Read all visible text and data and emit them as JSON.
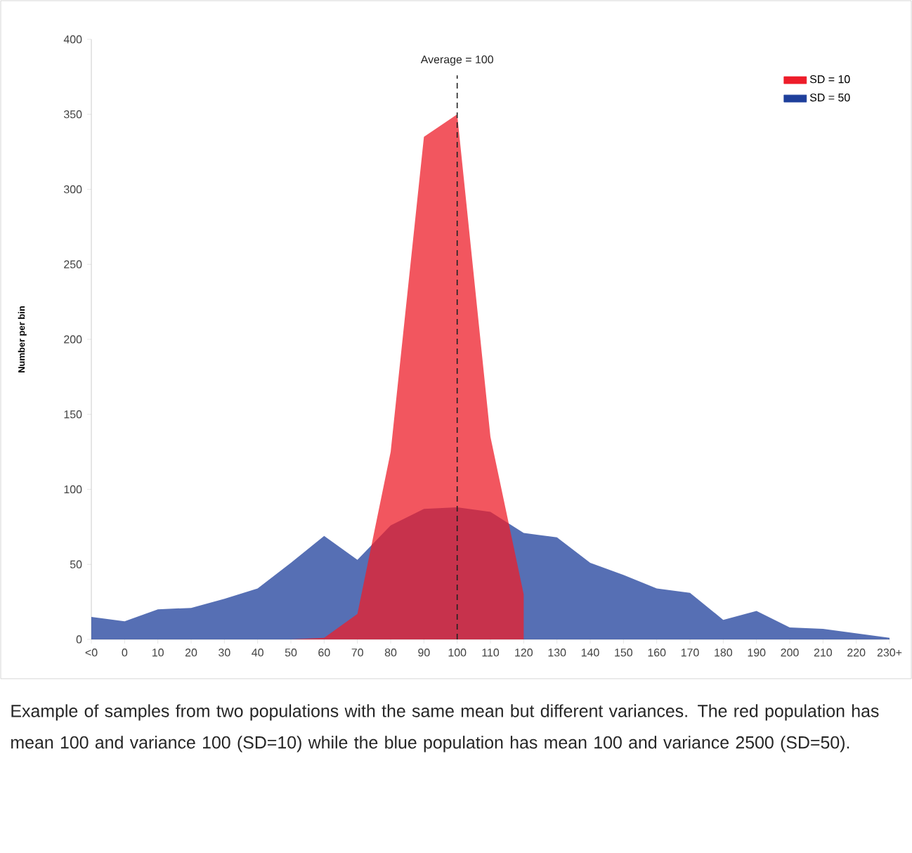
{
  "chart_data": {
    "type": "area",
    "ylabel": "Number per bin",
    "categories": [
      "<0",
      "0",
      "10",
      "20",
      "30",
      "40",
      "50",
      "60",
      "70",
      "80",
      "90",
      "100",
      "110",
      "120",
      "130",
      "140",
      "150",
      "160",
      "170",
      "180",
      "190",
      "200",
      "210",
      "220",
      "230+"
    ],
    "series": [
      {
        "name": "SD = 50",
        "color": "#1e3f9b",
        "values": [
          15,
          12,
          20,
          21,
          27,
          34,
          51,
          69,
          53,
          76,
          87,
          88,
          85,
          71,
          68,
          51,
          43,
          34,
          31,
          13,
          19,
          8,
          7,
          4,
          1
        ]
      },
      {
        "name": "SD = 10",
        "color": "#ee1d2a",
        "values": [
          null,
          null,
          null,
          null,
          null,
          null,
          0,
          1,
          17,
          125,
          335,
          350,
          135,
          30,
          null,
          null,
          null,
          null,
          null,
          null,
          null,
          null,
          null,
          null,
          null
        ]
      }
    ],
    "ylim": [
      0,
      400
    ],
    "yticks": [
      0,
      50,
      100,
      150,
      200,
      250,
      300,
      350,
      400
    ],
    "legend": "top right",
    "ref_lines": [
      {
        "axis": "x",
        "value": "100",
        "label": "Average = 100",
        "line_style": "dashed",
        "color": "#222222"
      }
    ],
    "annotations": [
      "Example of samples from two populations with the same mean but different variances. The red population has mean 100 and variance 100 (SD=10) while the blue population has mean 100 and variance 2500 (SD=50)."
    ]
  }
}
